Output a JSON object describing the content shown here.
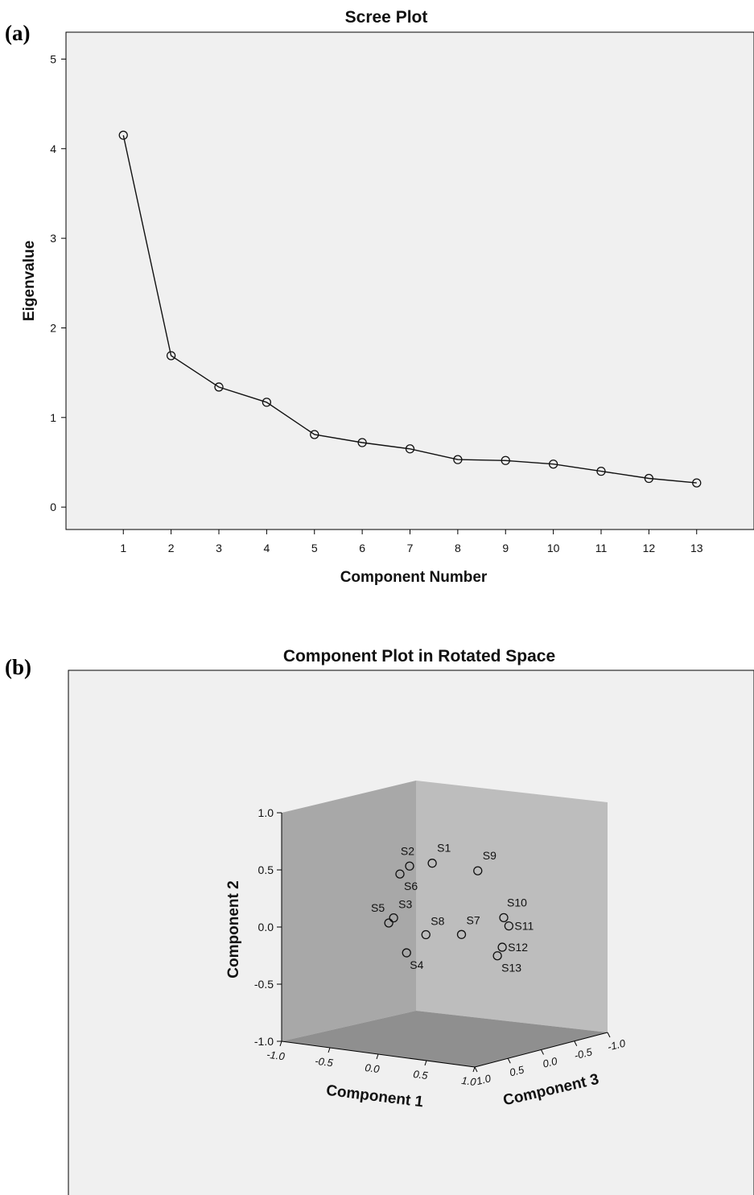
{
  "chart_data": [
    {
      "type": "line",
      "panel_label": "(a)",
      "title": "Scree Plot",
      "xlabel": "Component Number",
      "ylabel": "Eigenvalue",
      "x": [
        1,
        2,
        3,
        4,
        5,
        6,
        7,
        8,
        9,
        10,
        11,
        12,
        13
      ],
      "y": [
        4.15,
        1.69,
        1.34,
        1.17,
        0.81,
        0.72,
        0.65,
        0.53,
        0.52,
        0.48,
        0.4,
        0.32,
        0.27
      ],
      "xticks": [
        "1",
        "2",
        "3",
        "4",
        "5",
        "6",
        "7",
        "8",
        "9",
        "10",
        "11",
        "12",
        "13"
      ],
      "yticks": [
        "0",
        "1",
        "2",
        "3",
        "4",
        "5"
      ],
      "ylim": [
        -0.25,
        5.3
      ],
      "xlim": [
        -0.2,
        14.2
      ],
      "grid": false,
      "markers": "open-circle"
    },
    {
      "type": "scatter",
      "panel_label": "(b)",
      "title": "Component Plot in Rotated Space",
      "xlabel": "Component 1",
      "ylabel": "Component 2",
      "zlabel": "Component 3",
      "projection": "3d",
      "xticks": [
        "-1.0",
        "-0.5",
        "0.0",
        "0.5",
        "1.0"
      ],
      "yticks": [
        "-1.0",
        "-0.5",
        "0.0",
        "0.5",
        "1.0"
      ],
      "zticks": [
        "1.0",
        "0.5",
        "0.0",
        "-0.5",
        "-1.0"
      ],
      "xlim": [
        -1,
        1
      ],
      "ylim": [
        -1,
        1
      ],
      "zlim": [
        -1,
        1
      ],
      "points": [
        {
          "label": "S1",
          "x": 0.25,
          "y": 0.62,
          "z": 0.55
        },
        {
          "label": "S2",
          "x": 0.05,
          "y": 0.58,
          "z": 0.6
        },
        {
          "label": "S3",
          "x": -0.15,
          "y": 0.1,
          "z": 0.55
        },
        {
          "label": "S4",
          "x": -0.05,
          "y": -0.2,
          "z": 0.5
        },
        {
          "label": "S5",
          "x": -0.2,
          "y": 0.05,
          "z": 0.55
        },
        {
          "label": "S6",
          "x": -0.05,
          "y": 0.5,
          "z": 0.6
        },
        {
          "label": "S7",
          "x": 0.45,
          "y": 0.0,
          "z": 0.4
        },
        {
          "label": "S8",
          "x": 0.15,
          "y": -0.02,
          "z": 0.5
        },
        {
          "label": "S9",
          "x": 0.55,
          "y": 0.55,
          "z": 0.3
        },
        {
          "label": "S10",
          "x": 0.75,
          "y": 0.15,
          "z": 0.2
        },
        {
          "label": "S11",
          "x": 0.7,
          "y": 0.05,
          "z": 0.05
        },
        {
          "label": "S12",
          "x": 0.7,
          "y": -0.12,
          "z": 0.15
        },
        {
          "label": "S13",
          "x": 0.65,
          "y": -0.2,
          "z": 0.15
        }
      ],
      "grid": false
    }
  ]
}
